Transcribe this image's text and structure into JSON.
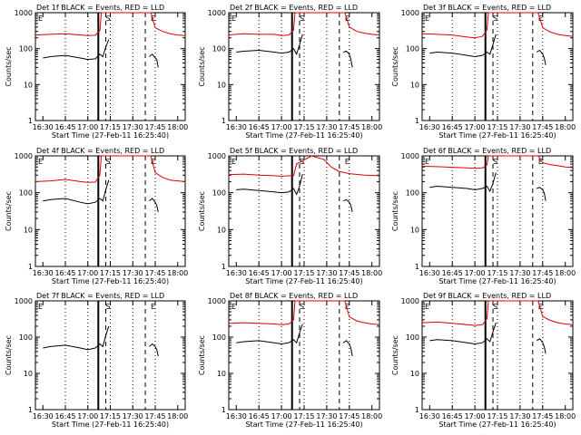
{
  "colors": {
    "events": "#000000",
    "lld": "#dd0000",
    "axes": "#000000",
    "background": "#ffffff"
  },
  "chart_data": [
    {
      "type": "line",
      "title": "Det  1f BLACK = Events, RED = LLD",
      "xlabel": "Start Time (27-Feb-11 16:25:40)",
      "ylabel": "Counts/sec",
      "xlim": [
        "16:25",
        "18:05"
      ],
      "ylim": [
        1,
        1000
      ],
      "yscale": "log",
      "xticks": [
        "16:30",
        "16:45",
        "17:00",
        "17:15",
        "17:30",
        "17:45",
        "18:00"
      ],
      "yticks": [
        "1",
        "10",
        "100",
        "1000"
      ],
      "markers": [
        {
          "label": "E",
          "time": "16:25"
        },
        {
          "label": "S",
          "time": "17:12"
        },
        {
          "label": "E",
          "time": "17:42"
        }
      ],
      "series": [
        {
          "color": "#dd0000",
          "x": [
            "16:25",
            "16:35",
            "16:45",
            "16:55",
            "17:00",
            "17:05",
            "17:08",
            "17:09",
            "17:42",
            "17:45",
            "17:50",
            "17:55",
            "18:00",
            "18:05"
          ],
          "y": [
            240,
            250,
            260,
            240,
            230,
            235,
            320,
            1000,
            1000,
            380,
            300,
            260,
            240,
            230
          ]
        },
        {
          "color": "#000000",
          "x": [
            "16:30",
            "16:35",
            "16:45",
            "16:55",
            "17:00",
            "17:05",
            "17:08",
            "17:10",
            "17:12",
            "17:14"
          ],
          "y": [
            55,
            60,
            65,
            55,
            50,
            52,
            70,
            60,
            110,
            180
          ],
          "x2": [
            "17:41",
            "17:43",
            "17:45",
            "17:46",
            "17:47"
          ],
          "y2": [
            60,
            70,
            55,
            50,
            30
          ]
        }
      ]
    },
    {
      "type": "line",
      "title": "Det  2f BLACK = Events, RED = LLD",
      "xlabel": "Start Time (27-Feb-11 16:25:40)",
      "ylabel": "Counts/sec",
      "xlim": [
        "16:25",
        "18:05"
      ],
      "ylim": [
        1,
        1000
      ],
      "yscale": "log",
      "xticks": [
        "16:30",
        "16:45",
        "17:00",
        "17:15",
        "17:30",
        "17:45",
        "18:00"
      ],
      "yticks": [
        "1",
        "10",
        "100",
        "1000"
      ],
      "markers": [
        {
          "label": "E",
          "time": "16:25"
        },
        {
          "label": "S",
          "time": "17:12"
        },
        {
          "label": "E",
          "time": "17:42"
        }
      ],
      "series": [
        {
          "color": "#dd0000",
          "x": [
            "16:25",
            "16:35",
            "16:45",
            "16:55",
            "17:00",
            "17:05",
            "17:08",
            "17:09",
            "17:42",
            "17:45",
            "17:50",
            "17:55",
            "18:00",
            "18:05"
          ],
          "y": [
            240,
            260,
            250,
            250,
            230,
            240,
            330,
            1000,
            1000,
            400,
            300,
            270,
            250,
            240
          ]
        },
        {
          "color": "#000000",
          "x": [
            "16:30",
            "16:35",
            "16:45",
            "16:55",
            "17:00",
            "17:05",
            "17:08",
            "17:10",
            "17:12",
            "17:14"
          ],
          "y": [
            80,
            85,
            90,
            80,
            75,
            80,
            100,
            70,
            130,
            250
          ],
          "x2": [
            "17:41",
            "17:43",
            "17:45",
            "17:46",
            "17:47"
          ],
          "y2": [
            80,
            85,
            70,
            50,
            30
          ]
        }
      ]
    },
    {
      "type": "line",
      "title": "Det  3f BLACK = Events, RED = LLD",
      "xlabel": "Start Time (27-Feb-11 16:25:40)",
      "ylabel": "Counts/sec",
      "xlim": [
        "16:25",
        "18:05"
      ],
      "ylim": [
        1,
        1000
      ],
      "yscale": "log",
      "xticks": [
        "16:30",
        "16:45",
        "17:00",
        "17:15",
        "17:30",
        "17:45",
        "18:00"
      ],
      "yticks": [
        "1",
        "10",
        "100",
        "1000"
      ],
      "markers": [
        {
          "label": "E",
          "time": "16:25"
        },
        {
          "label": "S",
          "time": "17:12"
        },
        {
          "label": "E",
          "time": "17:42"
        }
      ],
      "series": [
        {
          "color": "#dd0000",
          "x": [
            "16:25",
            "16:35",
            "16:45",
            "16:55",
            "17:00",
            "17:05",
            "17:08",
            "17:09",
            "17:42",
            "17:45",
            "17:50",
            "17:55",
            "18:00",
            "18:05"
          ],
          "y": [
            260,
            250,
            240,
            210,
            200,
            220,
            330,
            1000,
            1000,
            380,
            290,
            250,
            230,
            220
          ]
        },
        {
          "color": "#000000",
          "x": [
            "16:30",
            "16:35",
            "16:45",
            "16:55",
            "17:00",
            "17:05",
            "17:08",
            "17:10",
            "17:12",
            "17:14"
          ],
          "y": [
            75,
            80,
            75,
            65,
            60,
            65,
            80,
            70,
            130,
            250
          ],
          "x2": [
            "17:41",
            "17:43",
            "17:45",
            "17:46",
            "17:47"
          ],
          "y2": [
            80,
            90,
            70,
            55,
            35
          ]
        }
      ]
    },
    {
      "type": "line",
      "title": "Det  4f BLACK = Events, RED = LLD",
      "xlabel": "Start Time (27-Feb-11 16:25:40)",
      "ylabel": "Counts/sec",
      "xlim": [
        "16:25",
        "18:05"
      ],
      "ylim": [
        1,
        1000
      ],
      "yscale": "log",
      "xticks": [
        "16:30",
        "16:45",
        "17:00",
        "17:15",
        "17:30",
        "17:45",
        "18:00"
      ],
      "yticks": [
        "1",
        "10",
        "100",
        "1000"
      ],
      "markers": [
        {
          "label": "E",
          "time": "16:25"
        },
        {
          "label": "S",
          "time": "17:12"
        },
        {
          "label": "E",
          "time": "17:42"
        }
      ],
      "series": [
        {
          "color": "#dd0000",
          "x": [
            "16:25",
            "16:35",
            "16:45",
            "16:55",
            "17:00",
            "17:05",
            "17:08",
            "17:09",
            "17:42",
            "17:45",
            "17:50",
            "17:55",
            "18:00",
            "18:05"
          ],
          "y": [
            200,
            210,
            230,
            200,
            190,
            195,
            300,
            1000,
            1000,
            350,
            260,
            220,
            210,
            200
          ]
        },
        {
          "color": "#000000",
          "x": [
            "16:30",
            "16:35",
            "16:45",
            "16:55",
            "17:00",
            "17:05",
            "17:08",
            "17:10",
            "17:12",
            "17:14"
          ],
          "y": [
            60,
            65,
            70,
            55,
            50,
            55,
            70,
            60,
            120,
            220
          ],
          "x2": [
            "17:41",
            "17:43",
            "17:45",
            "17:46",
            "17:47"
          ],
          "y2": [
            60,
            70,
            55,
            45,
            30
          ]
        }
      ]
    },
    {
      "type": "line",
      "title": "Det  5f BLACK = Events, RED = LLD",
      "xlabel": "Start Time (27-Feb-11 16:25:40)",
      "ylabel": "Counts/sec",
      "xlim": [
        "16:25",
        "18:05"
      ],
      "ylim": [
        1,
        1000
      ],
      "yscale": "log",
      "xticks": [
        "16:30",
        "16:45",
        "17:00",
        "17:15",
        "17:30",
        "17:45",
        "18:00"
      ],
      "yticks": [
        "1",
        "10",
        "100",
        "1000"
      ],
      "markers": [
        {
          "label": "E",
          "time": "16:25"
        },
        {
          "label": "S",
          "time": "17:12"
        },
        {
          "label": "E",
          "time": "17:42"
        }
      ],
      "series": [
        {
          "color": "#dd0000",
          "x": [
            "16:25",
            "16:35",
            "16:45",
            "16:55",
            "17:00",
            "17:05",
            "17:08",
            "17:10",
            "17:20",
            "17:28",
            "17:33",
            "17:38",
            "17:45",
            "17:55",
            "18:05"
          ],
          "y": [
            310,
            320,
            300,
            290,
            280,
            290,
            290,
            600,
            1000,
            800,
            500,
            380,
            330,
            300,
            290
          ]
        },
        {
          "color": "#000000",
          "x": [
            "16:30",
            "16:35",
            "16:45",
            "16:55",
            "17:00",
            "17:05",
            "17:08",
            "17:10",
            "17:12",
            "17:14"
          ],
          "y": [
            120,
            125,
            115,
            105,
            100,
            105,
            130,
            90,
            150,
            320
          ],
          "x2": [
            "17:41",
            "17:43",
            "17:45",
            "17:46",
            "17:47"
          ],
          "y2": [
            60,
            65,
            55,
            45,
            30
          ]
        }
      ]
    },
    {
      "type": "line",
      "title": "Det  6f BLACK = Events, RED = LLD",
      "xlabel": "Start Time (27-Feb-11 16:25:40)",
      "ylabel": "Counts/sec",
      "xlim": [
        "16:25",
        "18:05"
      ],
      "ylim": [
        1,
        1000
      ],
      "yscale": "log",
      "xticks": [
        "16:30",
        "16:45",
        "17:00",
        "17:15",
        "17:30",
        "17:45",
        "18:00"
      ],
      "yticks": [
        "1",
        "10",
        "100",
        "1000"
      ],
      "markers": [
        {
          "label": "E",
          "time": "16:25"
        },
        {
          "label": "S",
          "time": "17:12"
        },
        {
          "label": "E",
          "time": "17:42"
        }
      ],
      "series": [
        {
          "color": "#dd0000",
          "x": [
            "16:25",
            "16:35",
            "16:45",
            "16:55",
            "17:00",
            "17:05",
            "17:08",
            "17:09",
            "17:42",
            "17:45",
            "17:50",
            "17:55",
            "18:00",
            "18:05"
          ],
          "y": [
            520,
            510,
            490,
            470,
            460,
            470,
            560,
            1000,
            1000,
            650,
            580,
            540,
            500,
            480
          ]
        },
        {
          "color": "#000000",
          "x": [
            "16:30",
            "16:35",
            "16:45",
            "16:55",
            "17:00",
            "17:05",
            "17:08",
            "17:10",
            "17:12",
            "17:14"
          ],
          "y": [
            140,
            150,
            140,
            130,
            120,
            130,
            150,
            110,
            180,
            350
          ],
          "x2": [
            "17:41",
            "17:43",
            "17:45",
            "17:46",
            "17:47"
          ],
          "y2": [
            130,
            140,
            120,
            100,
            60
          ]
        }
      ]
    },
    {
      "type": "line",
      "title": "Det  7f BLACK = Events, RED = LLD",
      "xlabel": "Start Time (27-Feb-11 16:25:40)",
      "ylabel": "Counts/sec",
      "xlim": [
        "16:25",
        "18:05"
      ],
      "ylim": [
        1,
        1000
      ],
      "yscale": "log",
      "xticks": [
        "16:30",
        "16:45",
        "17:00",
        "17:15",
        "17:30",
        "17:45",
        "18:00"
      ],
      "yticks": [
        "1",
        "10",
        "100",
        "1000"
      ],
      "markers": [
        {
          "label": "E",
          "time": "16:25"
        },
        {
          "label": "S",
          "time": "17:12"
        },
        {
          "label": "E",
          "time": "17:42"
        }
      ],
      "series": [
        {
          "color": "#000000",
          "x": [
            "16:30",
            "16:35",
            "16:45",
            "16:55",
            "17:00",
            "17:05",
            "17:08",
            "17:10",
            "17:12",
            "17:14"
          ],
          "y": [
            50,
            55,
            60,
            50,
            45,
            50,
            65,
            55,
            110,
            200
          ],
          "x2": [
            "17:41",
            "17:43",
            "17:45",
            "17:46",
            "17:47"
          ],
          "y2": [
            55,
            65,
            55,
            45,
            30
          ]
        }
      ]
    },
    {
      "type": "line",
      "title": "Det  8f BLACK = Events, RED = LLD",
      "xlabel": "Start Time (27-Feb-11 16:25:40)",
      "ylabel": "Counts/sec",
      "xlim": [
        "16:25",
        "18:05"
      ],
      "ylim": [
        1,
        1000
      ],
      "yscale": "log",
      "xticks": [
        "16:30",
        "16:45",
        "17:00",
        "17:15",
        "17:30",
        "17:45",
        "18:00"
      ],
      "yticks": [
        "1",
        "10",
        "100",
        "1000"
      ],
      "markers": [
        {
          "label": "E",
          "time": "16:25"
        },
        {
          "label": "S",
          "time": "17:12"
        },
        {
          "label": "E",
          "time": "17:42"
        }
      ],
      "series": [
        {
          "color": "#dd0000",
          "x": [
            "16:25",
            "16:35",
            "16:45",
            "16:55",
            "17:00",
            "17:05",
            "17:08",
            "17:09",
            "17:42",
            "17:45",
            "17:50",
            "17:55",
            "18:00",
            "18:05"
          ],
          "y": [
            240,
            250,
            240,
            230,
            220,
            230,
            300,
            1000,
            1000,
            360,
            280,
            250,
            230,
            220
          ]
        },
        {
          "color": "#000000",
          "x": [
            "16:30",
            "16:35",
            "16:45",
            "16:55",
            "17:00",
            "17:05",
            "17:08",
            "17:10",
            "17:12",
            "17:14"
          ],
          "y": [
            70,
            75,
            80,
            70,
            65,
            70,
            85,
            70,
            130,
            230
          ],
          "x2": [
            "17:41",
            "17:43",
            "17:45",
            "17:46",
            "17:47"
          ],
          "y2": [
            70,
            80,
            65,
            50,
            30
          ]
        }
      ]
    },
    {
      "type": "line",
      "title": "Det  9f BLACK = Events, RED = LLD",
      "xlabel": "Start Time (27-Feb-11 16:25:40)",
      "ylabel": "Counts/sec",
      "xlim": [
        "16:25",
        "18:05"
      ],
      "ylim": [
        1,
        1000
      ],
      "yscale": "log",
      "xticks": [
        "16:30",
        "16:45",
        "17:00",
        "17:15",
        "17:30",
        "17:45",
        "18:00"
      ],
      "yticks": [
        "1",
        "10",
        "100",
        "1000"
      ],
      "markers": [
        {
          "label": "E",
          "time": "16:25"
        },
        {
          "label": "S",
          "time": "17:12"
        },
        {
          "label": "E",
          "time": "17:42"
        }
      ],
      "series": [
        {
          "color": "#dd0000",
          "x": [
            "16:25",
            "16:35",
            "16:45",
            "16:55",
            "17:00",
            "17:05",
            "17:08",
            "17:09",
            "17:42",
            "17:45",
            "17:50",
            "17:55",
            "18:00",
            "18:05"
          ],
          "y": [
            250,
            260,
            240,
            220,
            210,
            220,
            320,
            1000,
            1000,
            370,
            290,
            250,
            230,
            220
          ]
        },
        {
          "color": "#000000",
          "x": [
            "16:30",
            "16:35",
            "16:45",
            "16:55",
            "17:00",
            "17:05",
            "17:08",
            "17:10",
            "17:12",
            "17:14"
          ],
          "y": [
            80,
            85,
            80,
            70,
            65,
            70,
            90,
            75,
            140,
            250
          ],
          "x2": [
            "17:41",
            "17:43",
            "17:45",
            "17:46",
            "17:47"
          ],
          "y2": [
            80,
            90,
            70,
            55,
            35
          ]
        }
      ]
    }
  ]
}
